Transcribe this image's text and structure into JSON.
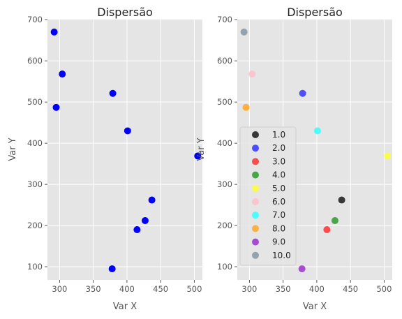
{
  "chart_data": [
    {
      "type": "scatter",
      "title": "Dispersão",
      "xlabel": "Var X",
      "ylabel": "Var Y",
      "xlim": [
        282,
        512
      ],
      "ylim": [
        68,
        702
      ],
      "xticks": [
        300,
        350,
        400,
        450,
        500
      ],
      "yticks": [
        100,
        200,
        300,
        400,
        500,
        600,
        700
      ],
      "grid": true,
      "color": "#0000ff",
      "points": [
        {
          "x": 292,
          "y": 670
        },
        {
          "x": 304,
          "y": 568
        },
        {
          "x": 295,
          "y": 487
        },
        {
          "x": 379,
          "y": 521
        },
        {
          "x": 401,
          "y": 430
        },
        {
          "x": 505,
          "y": 369
        },
        {
          "x": 437,
          "y": 262
        },
        {
          "x": 427,
          "y": 212
        },
        {
          "x": 415,
          "y": 190
        },
        {
          "x": 378,
          "y": 95
        }
      ]
    },
    {
      "type": "scatter",
      "title": "Dispersão",
      "xlabel": "Var X",
      "ylabel": "Var Y",
      "xlim": [
        282,
        512
      ],
      "ylim": [
        68,
        702
      ],
      "xticks": [
        300,
        350,
        400,
        450,
        500
      ],
      "yticks": [
        100,
        200,
        300,
        400,
        500,
        600,
        700
      ],
      "grid": true,
      "legend_position": "lower-left",
      "series": [
        {
          "name": "1.0",
          "color": "#1a1a1a",
          "points": [
            {
              "x": 437,
              "y": 262
            }
          ]
        },
        {
          "name": "2.0",
          "color": "#3333ff",
          "points": [
            {
              "x": 379,
              "y": 521
            }
          ]
        },
        {
          "name": "3.0",
          "color": "#ff3333",
          "points": [
            {
              "x": 415,
              "y": 190
            }
          ]
        },
        {
          "name": "4.0",
          "color": "#2e9a2e",
          "points": [
            {
              "x": 427,
              "y": 212
            }
          ]
        },
        {
          "name": "5.0",
          "color": "#ffff33",
          "points": [
            {
              "x": 505,
              "y": 369
            }
          ]
        },
        {
          "name": "6.0",
          "color": "#ffc0cb",
          "points": [
            {
              "x": 304,
              "y": 568
            }
          ]
        },
        {
          "name": "7.0",
          "color": "#33ffff",
          "points": [
            {
              "x": 401,
              "y": 430
            }
          ]
        },
        {
          "name": "8.0",
          "color": "#ffa726",
          "points": [
            {
              "x": 295,
              "y": 487
            }
          ]
        },
        {
          "name": "9.0",
          "color": "#9933cc",
          "points": [
            {
              "x": 378,
              "y": 95
            }
          ]
        },
        {
          "name": "10.0",
          "color": "#8597a6",
          "points": [
            {
              "x": 292,
              "y": 670
            }
          ]
        }
      ]
    }
  ]
}
